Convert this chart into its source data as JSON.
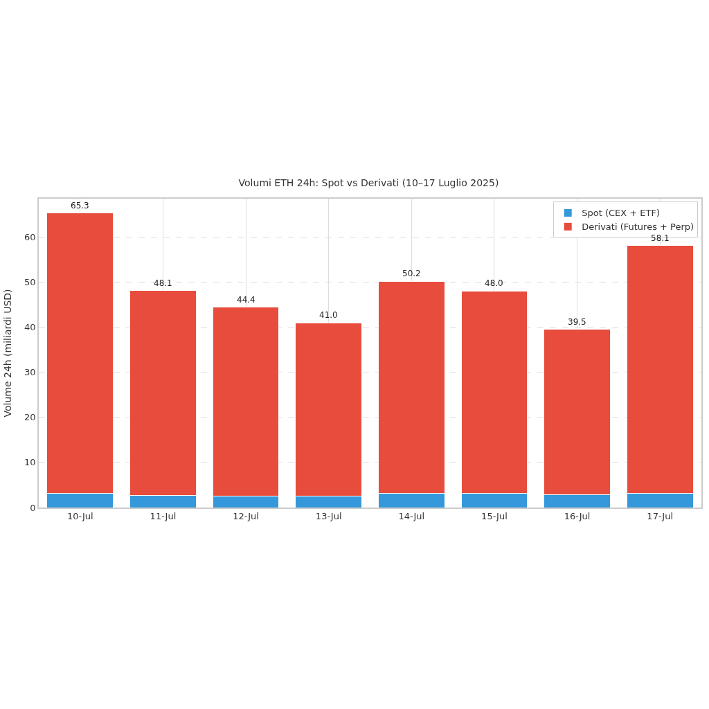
{
  "chart_data": {
    "type": "bar",
    "title": "Volumi ETH 24h: Spot vs Derivati (10–17 Luglio 2025)",
    "ylabel": "Volume 24h (miliardi USD)",
    "categories": [
      "10-Jul",
      "11-Jul",
      "12-Jul",
      "13-Jul",
      "14-Jul",
      "15-Jul",
      "16-Jul",
      "17-Jul"
    ],
    "series": [
      {
        "name": "Spot (CEX + ETF)",
        "color": "#3498db",
        "values": [
          3.1,
          2.7,
          2.6,
          2.5,
          3.1,
          3.2,
          2.9,
          3.1
        ]
      },
      {
        "name": "Derivati (Futures + Perp)",
        "color": "#e74c3c",
        "values": [
          62.2,
          45.4,
          41.8,
          38.5,
          47.1,
          44.8,
          36.6,
          55.0
        ]
      }
    ],
    "stacked": true,
    "totals": [
      "65.3",
      "48.1",
      "44.4",
      "41.0",
      "50.2",
      "48.0",
      "39.5",
      "58.1"
    ],
    "ylim": [
      0,
      68.5
    ],
    "yticks": [
      0,
      10,
      20,
      30,
      40,
      50,
      60
    ],
    "grid": true,
    "legend": "top right"
  }
}
